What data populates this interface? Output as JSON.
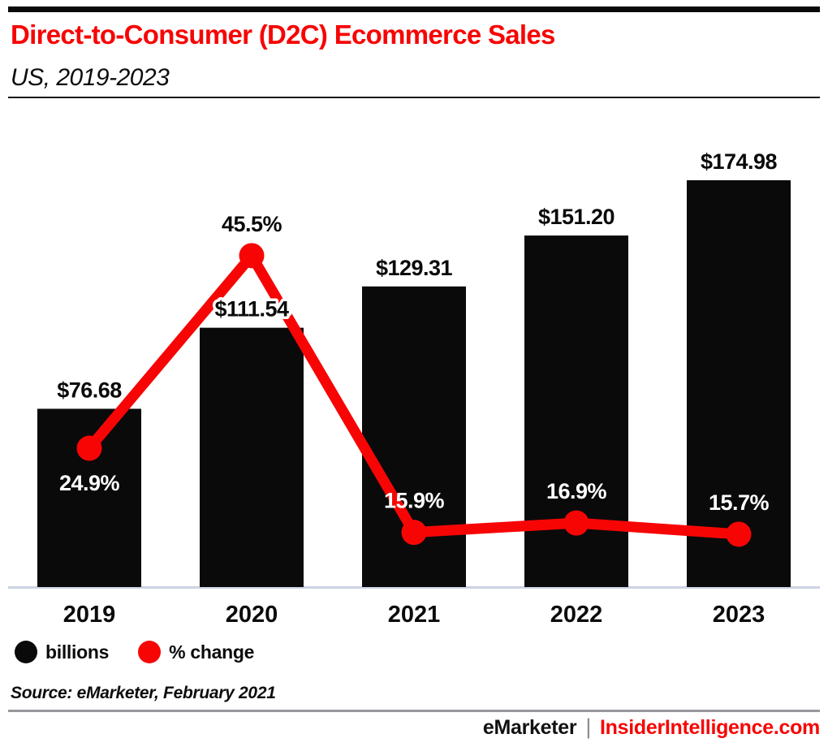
{
  "header": {
    "title": "Direct-to-Consumer (D2C) Ecommerce Sales",
    "subtitle": "US, 2019-2023"
  },
  "legend": [
    {
      "label": "billions",
      "color": "#0a0a0a",
      "marker": "circle-icon"
    },
    {
      "label": "% change",
      "color": "#f70505",
      "marker": "circle-icon"
    }
  ],
  "source": {
    "text": "Source: eMarketer, February 2021"
  },
  "footer": {
    "brand": "eMarketer",
    "separator": "|",
    "site": "InsiderIntelligence.com"
  },
  "colors": {
    "red": "#f70505",
    "black": "#0a0a0a",
    "axis_line": "#ccd3e3",
    "header_rule": "#1a1a1a",
    "footer_rule": "#96989b",
    "label_white": "#ffffff"
  },
  "chart_data": {
    "type": "bar",
    "title": "Direct-to-Consumer (D2C) Ecommerce Sales",
    "categories": [
      "2019",
      "2020",
      "2021",
      "2022",
      "2023"
    ],
    "series": [
      {
        "name": "billions",
        "type": "bar",
        "color": "#0a0a0a",
        "values": [
          76.68,
          111.54,
          129.31,
          151.2,
          174.98
        ],
        "labels": [
          "$76.68",
          "$111.54",
          "$129.31",
          "$151.20",
          "$174.98"
        ]
      },
      {
        "name": "% change",
        "type": "line",
        "color": "#f70505",
        "values": [
          24.9,
          45.5,
          15.9,
          16.9,
          15.7
        ],
        "labels": [
          "24.9%",
          "45.5%",
          "15.9%",
          "16.9%",
          "15.7%"
        ]
      }
    ],
    "xlabel": "",
    "ylabel": "",
    "units": "US$ billions; year-over-year % change",
    "grid": false,
    "legend_position": "bottom-left"
  }
}
